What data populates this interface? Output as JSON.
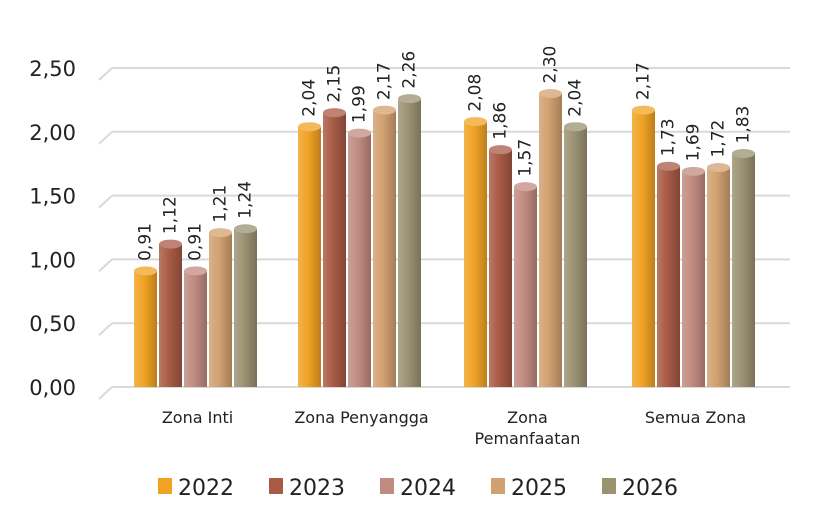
{
  "chart_data": {
    "type": "bar",
    "title": "",
    "xlabel": "",
    "ylabel": "",
    "ylim": [
      0,
      2.5
    ],
    "yticks": [
      "0,00",
      "0,50",
      "1,00",
      "1,50",
      "2,00",
      "2,50"
    ],
    "grid": true,
    "legend_position": "bottom",
    "categories": [
      [
        "Zona Inti"
      ],
      [
        "Zona Penyangga"
      ],
      [
        "Zona",
        "Pemanfaatan"
      ],
      [
        "Semua Zona"
      ]
    ],
    "series": [
      {
        "name": "2022",
        "color": "#f0a224",
        "values": [
          0.91,
          2.04,
          2.08,
          2.17
        ],
        "labels": [
          "0,91",
          "2,04",
          "2,08",
          "2,17"
        ]
      },
      {
        "name": "2023",
        "color": "#a85a45",
        "values": [
          1.12,
          2.15,
          1.86,
          1.73
        ],
        "labels": [
          "1,12",
          "2,15",
          "1,86",
          "1,73"
        ]
      },
      {
        "name": "2024",
        "color": "#c08b80",
        "values": [
          0.91,
          1.99,
          1.57,
          1.69
        ],
        "labels": [
          "0,91",
          "1,99",
          "1,57",
          "1,69"
        ]
      },
      {
        "name": "2025",
        "color": "#d1a06f",
        "values": [
          1.21,
          2.17,
          2.3,
          1.72
        ],
        "labels": [
          "1,21",
          "2,17",
          "2,30",
          "1,72"
        ]
      },
      {
        "name": "2026",
        "color": "#9b9272",
        "values": [
          1.24,
          2.26,
          2.04,
          1.83
        ],
        "labels": [
          "1,24",
          "2,26",
          "2,04",
          "1,83"
        ]
      }
    ]
  }
}
